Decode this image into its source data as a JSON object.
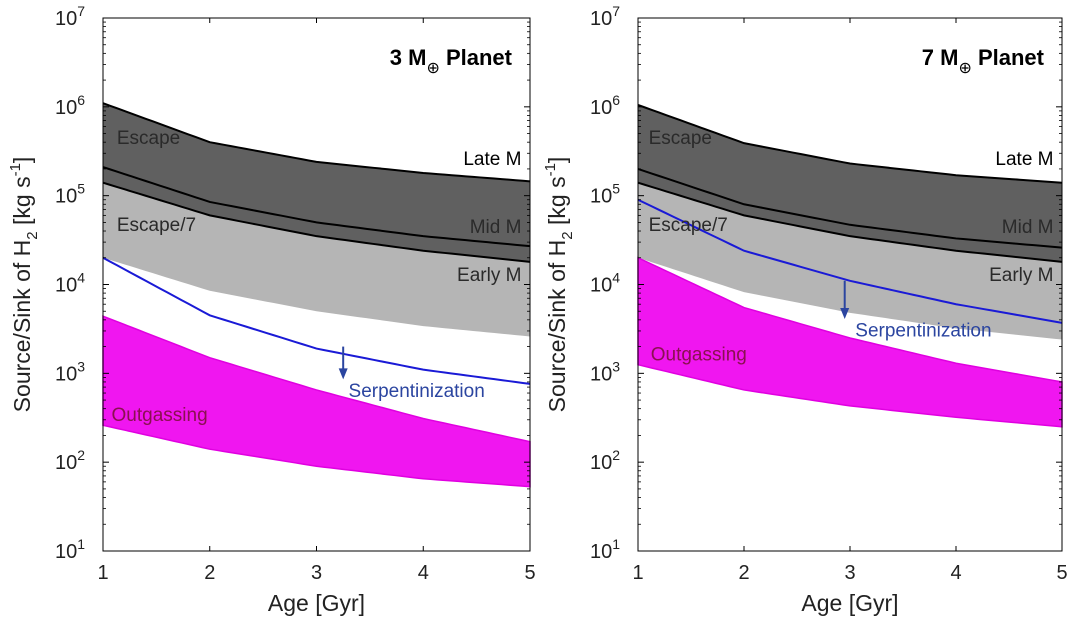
{
  "chart_data": [
    {
      "type": "area",
      "title": "3 M⊕ Planet",
      "title_parts": {
        "prefix": "3 M",
        "subscript": "⊕",
        "suffix": " Planet"
      },
      "xlabel": "Age [Gyr]",
      "ylabel": "Source/Sink of H₂ [kg s⁻¹]",
      "ylabel_parts": {
        "main": "Source/Sink of H",
        "sub": "2",
        "mid": " [kg s",
        "sup": "-1",
        "end": "]"
      },
      "xlim": [
        1,
        5
      ],
      "ylim": [
        10,
        10000000
      ],
      "yscale": "log",
      "x_ticks": [
        1,
        2,
        3,
        4,
        5
      ],
      "y_ticks": [
        {
          "value": 10,
          "exp": "1"
        },
        {
          "value": 100,
          "exp": "2"
        },
        {
          "value": 1000,
          "exp": "3"
        },
        {
          "value": 10000,
          "exp": "4"
        },
        {
          "value": 100000,
          "exp": "5"
        },
        {
          "value": 1000000,
          "exp": "6"
        },
        {
          "value": 10000000,
          "exp": "7"
        }
      ],
      "bands": [
        {
          "name": "Escape",
          "color": "#606060",
          "x": [
            1,
            2,
            3,
            4,
            5
          ],
          "upper": [
            1100000,
            400000,
            240000,
            180000,
            145000
          ],
          "lower": [
            140000,
            60000,
            35000,
            24000,
            18000
          ]
        },
        {
          "name": "Escape/7",
          "color": "#b5b5b5",
          "x": [
            1,
            2,
            3,
            4,
            5
          ],
          "upper": [
            140000,
            60000,
            35000,
            24000,
            18000
          ],
          "lower": [
            20000,
            8500,
            5000,
            3400,
            2600
          ]
        },
        {
          "name": "Outgassing",
          "color": "#f016f0",
          "edge_color": "#e000e0",
          "x": [
            1,
            2,
            3,
            4,
            5
          ],
          "upper": [
            4400,
            1500,
            650,
            310,
            170
          ],
          "lower": [
            260,
            140,
            90,
            65,
            53
          ]
        }
      ],
      "lines": [
        {
          "name": "Late M",
          "color": "#000000",
          "x": [
            1,
            2,
            3,
            4,
            5
          ],
          "y": [
            1100000,
            400000,
            240000,
            180000,
            145000
          ]
        },
        {
          "name": "Mid M",
          "color": "#000000",
          "x": [
            1,
            2,
            3,
            4,
            5
          ],
          "y": [
            210000,
            85000,
            50000,
            35000,
            27000
          ]
        },
        {
          "name": "Early M",
          "color": "#000000",
          "x": [
            1,
            2,
            3,
            4,
            5
          ],
          "y": [
            140000,
            60000,
            35000,
            24000,
            18000
          ]
        },
        {
          "name": "Serpentinization",
          "color": "#1a1ad6",
          "x": [
            1,
            2,
            3,
            4,
            5
          ],
          "y": [
            20000,
            4500,
            1900,
            1100,
            760
          ]
        }
      ],
      "arrow": {
        "x": 3.25,
        "from": 2000,
        "to": 900,
        "color": "#2b45a0"
      },
      "annotations": [
        {
          "text": "Escape",
          "x": 1.13,
          "y": 380000,
          "color": "#2a2a2a",
          "anchor": "start"
        },
        {
          "text": "Escape/7",
          "x": 1.13,
          "y": 40000,
          "color": "#2a2a2a",
          "anchor": "start"
        },
        {
          "text": "Late M",
          "x": 4.92,
          "y": 220000,
          "color": "#000000",
          "anchor": "end"
        },
        {
          "text": "Mid M",
          "x": 4.92,
          "y": 38000,
          "color": "#2a2a2a",
          "anchor": "end"
        },
        {
          "text": "Early M",
          "x": 4.92,
          "y": 11000,
          "color": "#2a2a2a",
          "anchor": "end"
        },
        {
          "text": "Serpentinization",
          "x": 3.3,
          "y": 540,
          "color": "#2b45a0",
          "anchor": "start"
        },
        {
          "text": "Outgassing",
          "x": 1.08,
          "y": 290,
          "color": "#8a1050",
          "anchor": "start"
        }
      ]
    },
    {
      "type": "area",
      "title": "7 M⊕ Planet",
      "title_parts": {
        "prefix": "7 M",
        "subscript": "⊕",
        "suffix": " Planet"
      },
      "xlabel": "Age [Gyr]",
      "ylabel": "Source/Sink of H₂ [kg s⁻¹]",
      "ylabel_parts": {
        "main": "Source/Sink of H",
        "sub": "2",
        "mid": " [kg s",
        "sup": "-1",
        "end": "]"
      },
      "xlim": [
        1,
        5
      ],
      "ylim": [
        10,
        10000000
      ],
      "yscale": "log",
      "x_ticks": [
        1,
        2,
        3,
        4,
        5
      ],
      "y_ticks": [
        {
          "value": 10,
          "exp": "1"
        },
        {
          "value": 100,
          "exp": "2"
        },
        {
          "value": 1000,
          "exp": "3"
        },
        {
          "value": 10000,
          "exp": "4"
        },
        {
          "value": 100000,
          "exp": "5"
        },
        {
          "value": 1000000,
          "exp": "6"
        },
        {
          "value": 10000000,
          "exp": "7"
        }
      ],
      "bands": [
        {
          "name": "Escape",
          "color": "#606060",
          "x": [
            1,
            2,
            3,
            4,
            5
          ],
          "upper": [
            1050000,
            390000,
            230000,
            170000,
            140000
          ],
          "lower": [
            140000,
            60000,
            35000,
            24000,
            18000
          ]
        },
        {
          "name": "Escape/7",
          "color": "#b5b5b5",
          "x": [
            1,
            2,
            3,
            4,
            5
          ],
          "upper": [
            140000,
            60000,
            35000,
            24000,
            18000
          ],
          "lower": [
            20000,
            8200,
            4800,
            3200,
            2400
          ]
        },
        {
          "name": "Outgassing",
          "color": "#f016f0",
          "edge_color": "#e000e0",
          "x": [
            1,
            2,
            3,
            4,
            5
          ],
          "upper": [
            20000,
            5500,
            2500,
            1300,
            800
          ],
          "lower": [
            1250,
            650,
            430,
            320,
            250
          ]
        }
      ],
      "lines": [
        {
          "name": "Late M",
          "color": "#000000",
          "x": [
            1,
            2,
            3,
            4,
            5
          ],
          "y": [
            1050000,
            390000,
            230000,
            170000,
            140000
          ]
        },
        {
          "name": "Mid M",
          "color": "#000000",
          "x": [
            1,
            2,
            3,
            4,
            5
          ],
          "y": [
            200000,
            80000,
            47000,
            33000,
            26000
          ]
        },
        {
          "name": "Early M",
          "color": "#000000",
          "x": [
            1,
            2,
            3,
            4,
            5
          ],
          "y": [
            140000,
            60000,
            35000,
            24000,
            18000
          ]
        },
        {
          "name": "Serpentinization",
          "color": "#1a1ad6",
          "x": [
            1,
            2,
            3,
            4,
            5
          ],
          "y": [
            90000,
            24000,
            11000,
            6000,
            3700
          ]
        }
      ],
      "arrow": {
        "x": 2.95,
        "from": 11000,
        "to": 4300,
        "color": "#2b45a0"
      },
      "annotations": [
        {
          "text": "Escape",
          "x": 1.1,
          "y": 380000,
          "color": "#2a2a2a",
          "anchor": "start"
        },
        {
          "text": "Escape/7",
          "x": 1.1,
          "y": 40000,
          "color": "#2a2a2a",
          "anchor": "start"
        },
        {
          "text": "Late M",
          "x": 4.92,
          "y": 220000,
          "color": "#000000",
          "anchor": "end"
        },
        {
          "text": "Mid M",
          "x": 4.92,
          "y": 38000,
          "color": "#2a2a2a",
          "anchor": "end"
        },
        {
          "text": "Early M",
          "x": 4.92,
          "y": 11000,
          "color": "#2a2a2a",
          "anchor": "end"
        },
        {
          "text": "Serpentinization",
          "x": 3.05,
          "y": 2600,
          "color": "#2b45a0",
          "anchor": "start"
        },
        {
          "text": "Outgassing",
          "x": 1.12,
          "y": 1400,
          "color": "#8a1050",
          "anchor": "start"
        }
      ]
    }
  ]
}
